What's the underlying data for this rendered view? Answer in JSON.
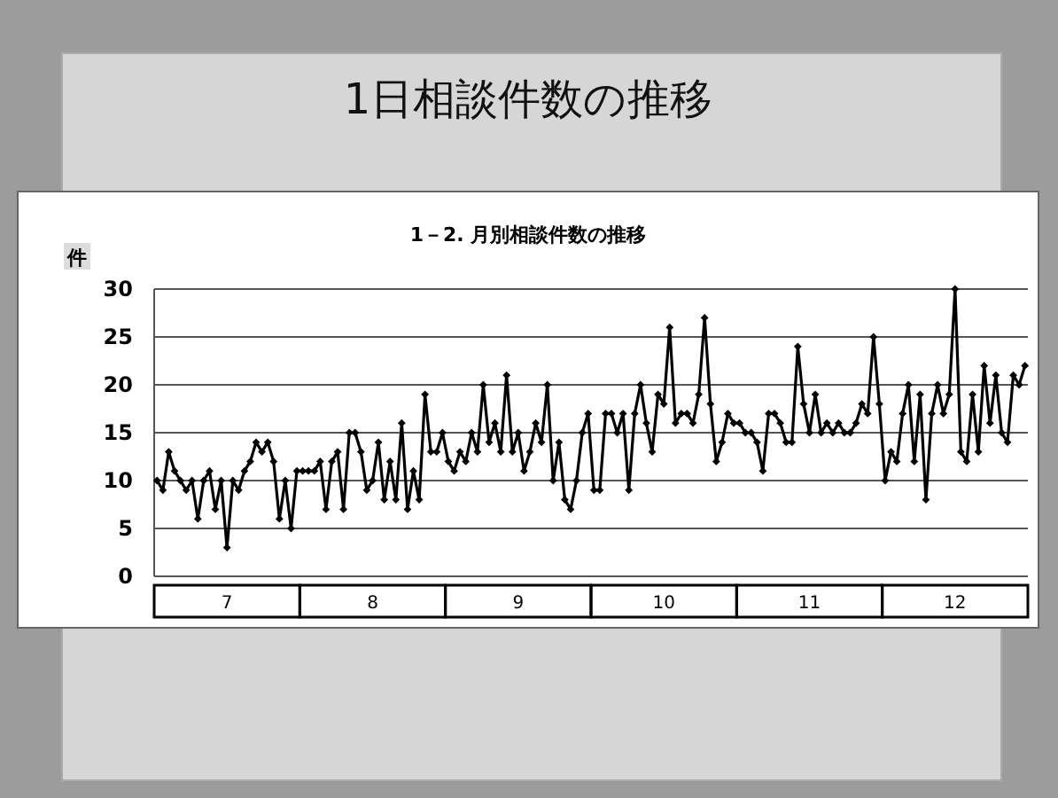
{
  "chart_data": {
    "type": "line",
    "title": "1日相談件数の推移",
    "subtitle": "1－2. 月別相談件数の推移",
    "ylabel": "件",
    "categories": [
      null,
      null,
      null,
      null,
      null,
      null,
      null,
      null,
      null,
      null,
      null,
      null,
      "7",
      null,
      null,
      null,
      null,
      null,
      null,
      null,
      null,
      null,
      null,
      null,
      null,
      null,
      null,
      null,
      null,
      null,
      null,
      null,
      null,
      null,
      null,
      null,
      null,
      "8",
      null,
      null,
      null,
      null,
      null,
      null,
      null,
      null,
      null,
      null,
      null,
      null,
      null,
      null,
      null,
      null,
      null,
      null,
      null,
      null,
      null,
      null,
      null,
      null,
      "9",
      null,
      null,
      null,
      null,
      null,
      null,
      null,
      null,
      null,
      null,
      null,
      null,
      null,
      null,
      null,
      null,
      null,
      null,
      null,
      null,
      null,
      null,
      null,
      null,
      "10",
      null,
      null,
      null,
      null,
      null,
      null,
      null,
      null,
      null,
      null,
      null,
      null,
      null,
      null,
      null,
      null,
      null,
      null,
      null,
      null,
      null,
      null,
      null,
      null,
      "11",
      null,
      null,
      null,
      null,
      null,
      null,
      null,
      null,
      null,
      null,
      null,
      null,
      null,
      null,
      null,
      null,
      null,
      null,
      null,
      null,
      null,
      null,
      null,
      null,
      "12",
      null,
      null,
      null,
      null,
      null,
      null,
      null,
      null,
      null,
      null,
      null,
      null
    ],
    "series": [
      {
        "color": "#000000",
        "values": [
          10,
          9,
          13,
          11,
          10,
          9,
          10,
          6,
          10,
          11,
          7,
          10,
          3,
          10,
          9,
          11,
          12,
          14,
          13,
          14,
          12,
          6,
          10,
          5,
          11,
          11,
          11,
          11,
          12,
          7,
          12,
          13,
          7,
          15,
          15,
          13,
          9,
          10,
          14,
          8,
          12,
          8,
          16,
          7,
          11,
          8,
          19,
          13,
          13,
          15,
          12,
          11,
          13,
          12,
          15,
          13,
          20,
          14,
          16,
          13,
          21,
          13,
          15,
          11,
          13,
          16,
          14,
          20,
          10,
          14,
          8,
          7,
          10,
          15,
          17,
          9,
          9,
          17,
          17,
          15,
          17,
          9,
          17,
          20,
          16,
          13,
          19,
          18,
          26,
          16,
          17,
          17,
          16,
          19,
          27,
          18,
          12,
          14,
          17,
          16,
          16,
          15,
          15,
          14,
          11,
          17,
          17,
          16,
          14,
          14,
          24,
          18,
          15,
          19,
          15,
          16,
          15,
          16,
          15,
          15,
          16,
          18,
          17,
          25,
          18,
          10,
          13,
          12,
          17,
          20,
          12,
          19,
          8,
          17,
          20,
          17,
          19,
          30,
          13,
          12,
          19,
          13,
          22,
          16,
          21,
          15,
          14,
          21,
          20,
          22
        ]
      }
    ],
    "ylim": [
      0,
      30
    ],
    "yticks": [
      0,
      5,
      10,
      15,
      20,
      25,
      30
    ],
    "grid": "y",
    "marker": "diamond",
    "line_style": "solid"
  }
}
